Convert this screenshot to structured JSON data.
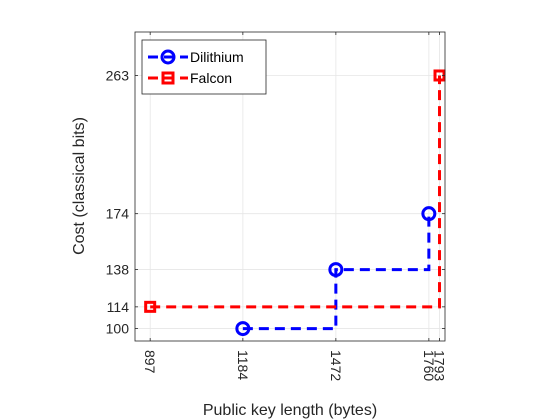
{
  "chart_data": {
    "type": "line",
    "title": "",
    "xlabel": "Public key length (bytes)",
    "ylabel": "Cost (classical bits)",
    "xlim": [
      850,
      1810
    ],
    "ylim": [
      92,
      291
    ],
    "xticks": [
      897,
      1184,
      1472,
      1760,
      1793
    ],
    "xtick_labels": [
      "897",
      "1184",
      "1472",
      "1760",
      "1793"
    ],
    "yticks": [
      100,
      114,
      138,
      174,
      263
    ],
    "ytick_labels": [
      "100",
      "114",
      "138",
      "174",
      "263"
    ],
    "grid": true,
    "legend_position": "top-left",
    "series": [
      {
        "name": "Dilithium",
        "color": "#0000ff",
        "marker": "circle",
        "line_style": "dashed-stairs",
        "points": [
          {
            "x": 1184,
            "y": 100
          },
          {
            "x": 1472,
            "y": 138
          },
          {
            "x": 1760,
            "y": 174
          }
        ]
      },
      {
        "name": "Falcon",
        "color": "#ff0000",
        "marker": "square",
        "line_style": "dashed-stairs",
        "points": [
          {
            "x": 897,
            "y": 114
          },
          {
            "x": 1793,
            "y": 263
          }
        ]
      }
    ]
  }
}
